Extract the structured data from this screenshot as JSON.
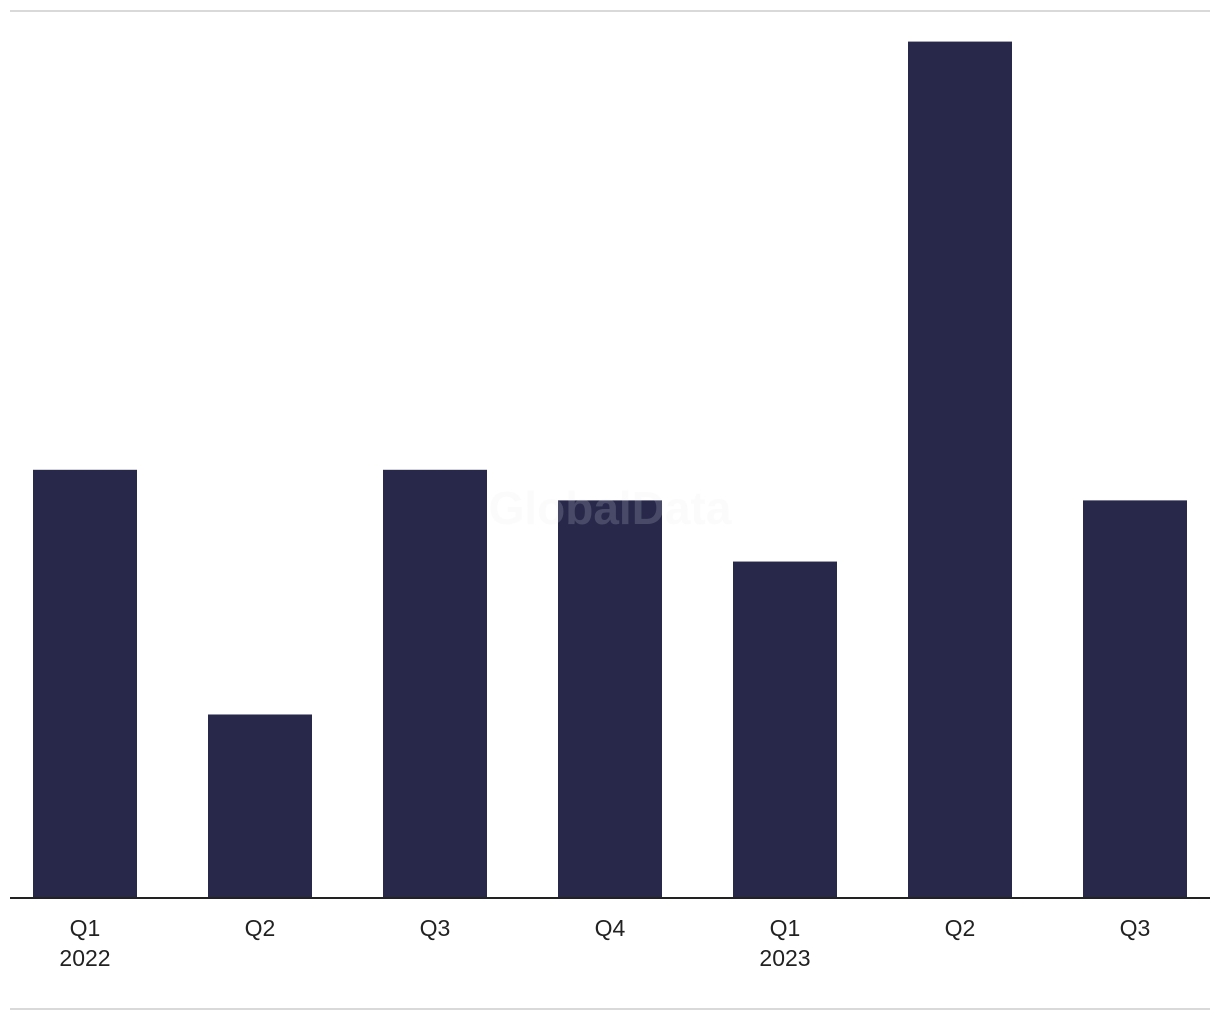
{
  "chart_data": {
    "type": "bar",
    "categories": [
      "Q1",
      "Q2",
      "Q3",
      "Q4",
      "Q1",
      "Q2",
      "Q3"
    ],
    "years": [
      "2022",
      null,
      null,
      null,
      "2023",
      null,
      null
    ],
    "values": [
      14,
      6,
      14,
      13,
      11,
      28,
      13
    ],
    "color": "#27284a",
    "ylim": [
      0,
      29
    ],
    "watermark": "GlobalData"
  }
}
